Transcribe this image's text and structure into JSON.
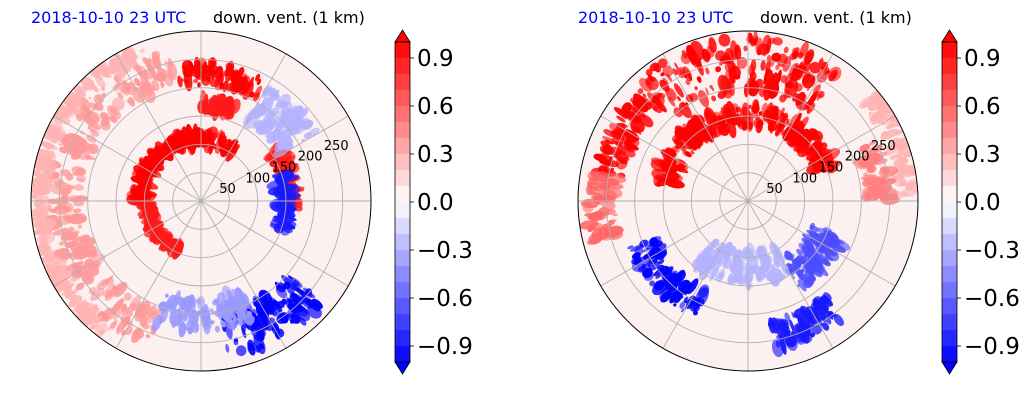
{
  "chart_data": [
    {
      "type": "heatmap",
      "projection": "polar",
      "date_label": "2018-10-10 23 UTC",
      "title": "down. vent. (1 km)",
      "radial_ticks": [
        50,
        100,
        150,
        200,
        250
      ],
      "r_max": 300,
      "theta_grid_deg": 30,
      "grid": true,
      "colormap": "bwr",
      "clim": [
        -1.0,
        1.0
      ],
      "colorbar_ticks": [
        "−0.9",
        "−0.6",
        "−0.3",
        "0.0",
        "0.3",
        "0.6",
        "0.9"
      ],
      "colorbar_tick_values": [
        -0.9,
        -0.6,
        -0.3,
        0.0,
        0.3,
        0.6,
        0.9
      ],
      "colorbar_extend": "both",
      "features": [
        {
          "kind": "band",
          "value": 1.0,
          "r": 225,
          "theta": [
            62,
            100
          ],
          "width": 40
        },
        {
          "kind": "band",
          "value": 0.9,
          "r": 170,
          "theta": [
            70,
            90
          ],
          "width": 25
        },
        {
          "kind": "band",
          "value": 1.0,
          "r": 110,
          "theta": [
            55,
            180
          ],
          "width": 25
        },
        {
          "kind": "band",
          "value": 0.9,
          "r": 95,
          "theta": [
            180,
            245
          ],
          "width": 15
        },
        {
          "kind": "band",
          "value": 0.4,
          "r": 240,
          "theta": [
            100,
            250
          ],
          "width": 60
        },
        {
          "kind": "band",
          "value": 0.3,
          "r": 285,
          "theta": [
            110,
            235
          ],
          "width": 20
        },
        {
          "kind": "band",
          "value": 0.9,
          "r": 160,
          "theta": [
            -5,
            35
          ],
          "width": 30
        },
        {
          "kind": "band",
          "value": -0.9,
          "r": 150,
          "theta": [
            -20,
            20
          ],
          "width": 30
        },
        {
          "kind": "band",
          "value": -1.0,
          "r": 240,
          "theta": [
            280,
            320
          ],
          "width": 80
        },
        {
          "kind": "band",
          "value": -0.4,
          "r": 200,
          "theta": [
            250,
            295
          ],
          "width": 60
        },
        {
          "kind": "band",
          "value": -0.3,
          "r": 200,
          "theta": [
            30,
            60
          ],
          "width": 70
        }
      ]
    },
    {
      "type": "heatmap",
      "projection": "polar",
      "date_label": "2018-10-10 23 UTC",
      "title": "down. vent. (1 km)",
      "radial_ticks": [
        50,
        100,
        150,
        200,
        250
      ],
      "r_max": 300,
      "theta_grid_deg": 30,
      "grid": true,
      "colormap": "bwr",
      "clim": [
        -1.0,
        1.0
      ],
      "colorbar_ticks": [
        "−0.9",
        "−0.6",
        "−0.3",
        "0.0",
        "0.3",
        "0.6",
        "0.9"
      ],
      "colorbar_tick_values": [
        -0.9,
        -0.6,
        -0.3,
        0.0,
        0.3,
        0.6,
        0.9
      ],
      "colorbar_extend": "both",
      "features": [
        {
          "kind": "band",
          "value": 1.0,
          "r": 240,
          "theta": [
            55,
            130
          ],
          "width": 100
        },
        {
          "kind": "band",
          "value": 1.0,
          "r": 150,
          "theta": [
            20,
            170
          ],
          "width": 40
        },
        {
          "kind": "band",
          "value": 1.0,
          "r": 250,
          "theta": [
            130,
            170
          ],
          "width": 50
        },
        {
          "kind": "band",
          "value": 0.6,
          "r": 260,
          "theta": [
            170,
            195
          ],
          "width": 50
        },
        {
          "kind": "band",
          "value": 0.3,
          "r": 280,
          "theta": [
            0,
            40
          ],
          "width": 40
        },
        {
          "kind": "band",
          "value": -1.0,
          "r": 200,
          "theta": [
            200,
            245
          ],
          "width": 50
        },
        {
          "kind": "band",
          "value": -0.9,
          "r": 240,
          "theta": [
            280,
            310
          ],
          "width": 50
        },
        {
          "kind": "band",
          "value": -0.7,
          "r": 150,
          "theta": [
            300,
            340
          ],
          "width": 60
        },
        {
          "kind": "band",
          "value": -0.3,
          "r": 120,
          "theta": [
            230,
            300
          ],
          "width": 60
        },
        {
          "kind": "band",
          "value": 0.5,
          "r": 230,
          "theta": [
            0,
            25
          ],
          "width": 50
        }
      ]
    }
  ]
}
